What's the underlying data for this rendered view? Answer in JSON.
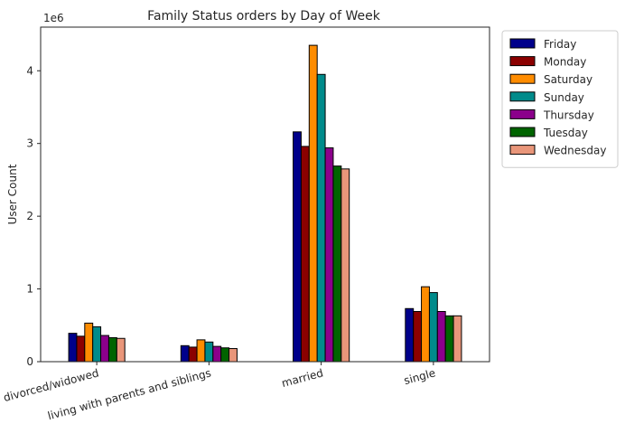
{
  "chart_data": {
    "type": "bar",
    "title": "Family Status orders by Day of Week",
    "xlabel": "",
    "ylabel": "User Count",
    "scale_label": "1e6",
    "ylim": [
      0,
      4.6
    ],
    "yticks": [
      "0",
      "1",
      "2",
      "3",
      "4"
    ],
    "categories": [
      "divorced/widowed",
      "living with parents and siblings",
      "married",
      "single"
    ],
    "legend_position": "outside-top-right",
    "grid": false,
    "series": [
      {
        "name": "Friday",
        "color": "#00008b",
        "values": [
          0.39,
          0.22,
          3.16,
          0.73
        ]
      },
      {
        "name": "Monday",
        "color": "#8b0000",
        "values": [
          0.35,
          0.2,
          2.96,
          0.69
        ]
      },
      {
        "name": "Saturday",
        "color": "#ff8c00",
        "values": [
          0.53,
          0.3,
          4.35,
          1.03
        ]
      },
      {
        "name": "Sunday",
        "color": "#008b8b",
        "values": [
          0.48,
          0.27,
          3.95,
          0.95
        ]
      },
      {
        "name": "Thursday",
        "color": "#8b008b",
        "values": [
          0.36,
          0.21,
          2.94,
          0.69
        ]
      },
      {
        "name": "Tuesday",
        "color": "#006400",
        "values": [
          0.33,
          0.19,
          2.69,
          0.63
        ]
      },
      {
        "name": "Wednesday",
        "color": "#e9967a",
        "values": [
          0.32,
          0.18,
          2.65,
          0.63
        ]
      }
    ]
  }
}
